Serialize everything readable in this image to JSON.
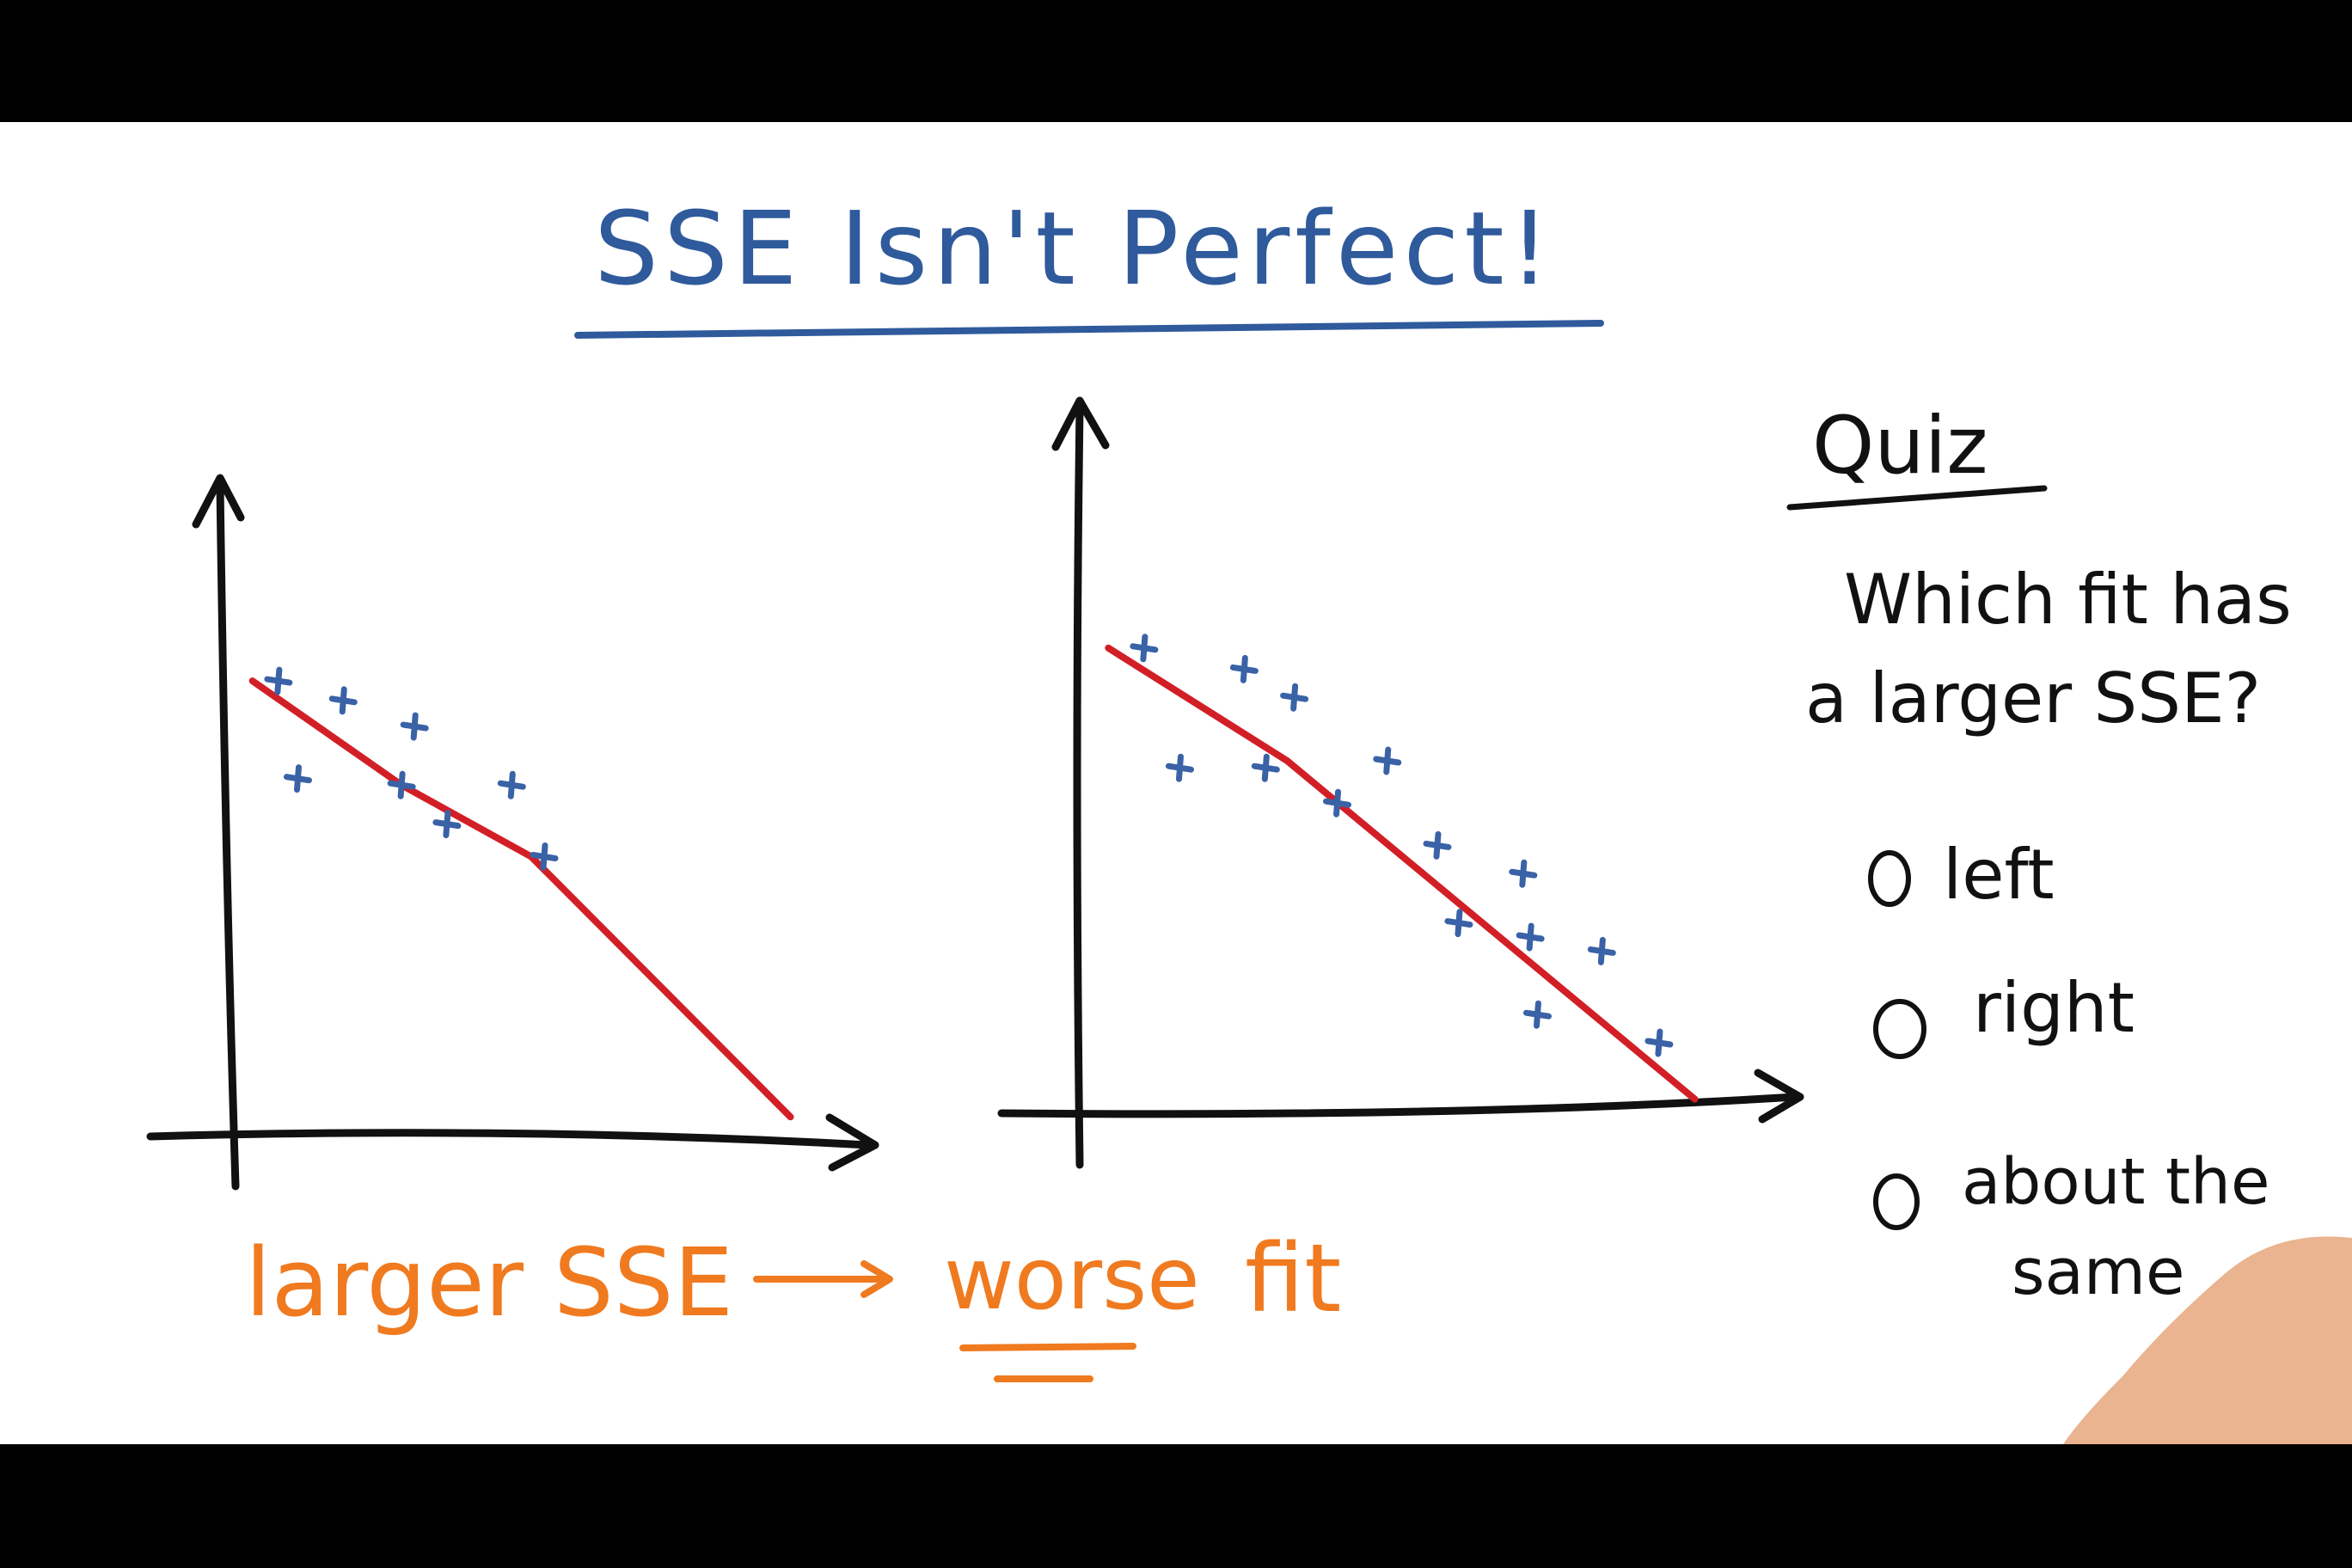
{
  "colors": {
    "background": "#ffffff",
    "letterbox": "#000000",
    "title_ink": "#2f5a9c",
    "axis_ink": "#111111",
    "fit_line": "#d21f26",
    "points": "#3a62a6",
    "annotation": "#f07a1f",
    "hand": "#e9b08a"
  },
  "title": "SSE Isn't Perfect!",
  "annotation": {
    "left": "larger SSE",
    "right_underlined": "worse",
    "right_rest": "fit"
  },
  "quiz": {
    "heading": "Quiz",
    "question_line1": "Which fit has",
    "question_line2": "a larger SSE?",
    "options": [
      {
        "label_line1": "left",
        "label_line2": ""
      },
      {
        "label_line1": "right",
        "label_line2": ""
      },
      {
        "label_line1": "about the",
        "label_line2": "same"
      }
    ]
  },
  "chart_data": [
    {
      "type": "scatter",
      "title": "",
      "xlabel": "",
      "ylabel": "",
      "xlim": [
        0,
        10
      ],
      "ylim": [
        0,
        10
      ],
      "grid": false,
      "points": [
        {
          "x": 0.9,
          "y": 7.0
        },
        {
          "x": 1.9,
          "y": 6.7
        },
        {
          "x": 3.0,
          "y": 6.3
        },
        {
          "x": 1.2,
          "y": 5.5
        },
        {
          "x": 2.8,
          "y": 5.4
        },
        {
          "x": 4.5,
          "y": 5.4
        },
        {
          "x": 3.5,
          "y": 4.8
        },
        {
          "x": 5.0,
          "y": 4.3
        }
      ],
      "fit_line": [
        {
          "x": 0.5,
          "y": 7.0
        },
        {
          "x": 2.8,
          "y": 5.4
        },
        {
          "x": 4.8,
          "y": 4.3
        },
        {
          "x": 8.8,
          "y": 0.3
        }
      ]
    },
    {
      "type": "scatter",
      "title": "",
      "xlabel": "",
      "ylabel": "",
      "xlim": [
        0,
        10
      ],
      "ylim": [
        0,
        10
      ],
      "grid": false,
      "points": [
        {
          "x": 0.9,
          "y": 6.6
        },
        {
          "x": 2.3,
          "y": 6.3
        },
        {
          "x": 3.0,
          "y": 5.9
        },
        {
          "x": 1.4,
          "y": 4.9
        },
        {
          "x": 2.6,
          "y": 4.9
        },
        {
          "x": 4.3,
          "y": 5.0
        },
        {
          "x": 3.6,
          "y": 4.4
        },
        {
          "x": 5.0,
          "y": 3.8
        },
        {
          "x": 6.2,
          "y": 3.4
        },
        {
          "x": 5.3,
          "y": 2.7
        },
        {
          "x": 6.3,
          "y": 2.5
        },
        {
          "x": 7.3,
          "y": 2.3
        },
        {
          "x": 6.4,
          "y": 1.4
        },
        {
          "x": 8.1,
          "y": 1.0
        }
      ],
      "fit_line": [
        {
          "x": 0.4,
          "y": 6.6
        },
        {
          "x": 2.9,
          "y": 5.0
        },
        {
          "x": 8.6,
          "y": 0.2
        }
      ]
    }
  ]
}
